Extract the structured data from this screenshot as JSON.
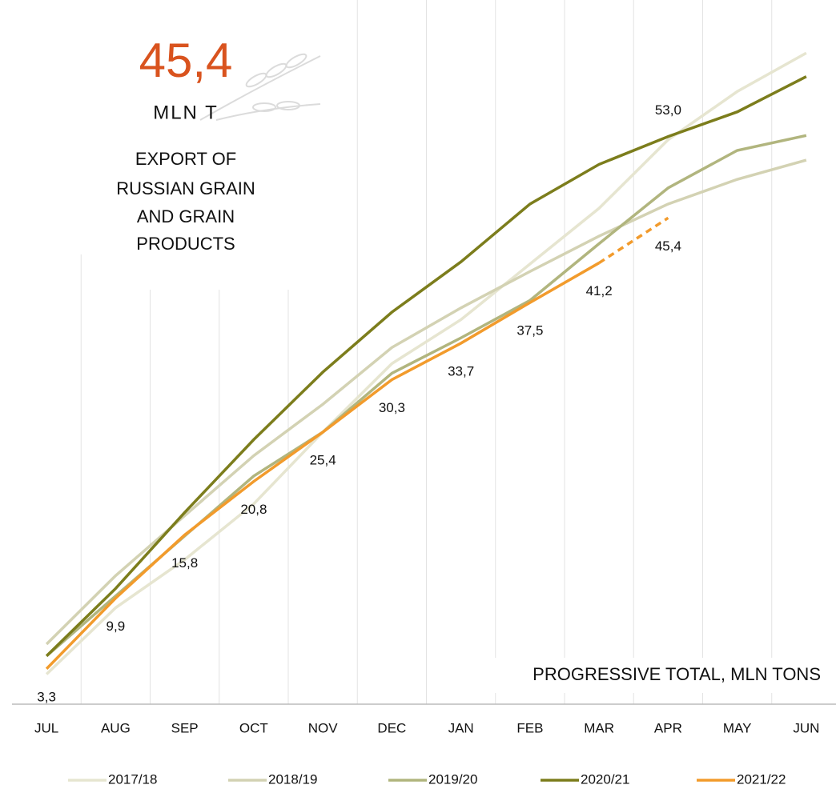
{
  "chart_data": {
    "type": "line",
    "headline_value": "45,4",
    "headline_unit": "MLN T",
    "title_lines": [
      "EXPORT OF",
      "RUSSIAN GRAIN",
      "AND GRAIN",
      "PRODUCTS"
    ],
    "annotation": "PROGRESSIVE TOTAL, MLN TONS",
    "categories": [
      "JUL",
      "AUG",
      "SEP",
      "OCT",
      "NOV",
      "DEC",
      "JAN",
      "FEB",
      "MAR",
      "APR",
      "MAY",
      "JUN"
    ],
    "ylim": [
      0,
      65
    ],
    "series": [
      {
        "name": "2017/18",
        "color": "#e6e5d0",
        "values": [
          2.8,
          9.0,
          13.5,
          18.7,
          25.4,
          31.8,
          35.9,
          41.1,
          46.3,
          52.7,
          57.2,
          60.8
        ]
      },
      {
        "name": "2018/19",
        "color": "#d3d2b3",
        "values": [
          5.6,
          12.0,
          17.6,
          23.2,
          28.0,
          33.3,
          37.0,
          40.4,
          43.7,
          46.7,
          49.0,
          50.8
        ]
      },
      {
        "name": "2019/20",
        "color": "#b1b57e",
        "values": [
          4.5,
          10.1,
          15.7,
          21.3,
          25.4,
          30.9,
          34.2,
          37.7,
          43.0,
          48.2,
          51.7,
          53.1
        ]
      },
      {
        "name": "2020/21",
        "color": "#7c7d1c",
        "values": [
          4.5,
          10.8,
          17.9,
          24.7,
          31.0,
          36.6,
          41.3,
          46.7,
          50.4,
          53.0,
          55.3,
          58.6
        ],
        "value_labels": [
          null,
          null,
          null,
          null,
          null,
          null,
          null,
          null,
          null,
          "53,0",
          null,
          null
        ],
        "label_position": "above"
      },
      {
        "name": "2021/22",
        "color": "#f29b2c",
        "values": [
          3.3,
          9.9,
          15.8,
          20.8,
          25.4,
          30.3,
          33.7,
          37.5,
          41.2,
          45.4,
          null,
          null
        ],
        "value_labels": [
          "3,3",
          "9,9",
          "15,8",
          "20,8",
          "25,4",
          "30,3",
          "33,7",
          "37,5",
          "41,2",
          "45,4",
          null,
          null
        ],
        "label_position": "below",
        "dashed_last_segment": true
      }
    ]
  }
}
